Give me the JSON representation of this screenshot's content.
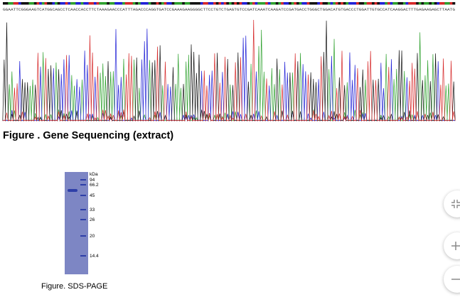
{
  "sequence": "GGAATTCGGGAAGTCATGGCAGCCTCAACCACCTTCTAAAGAACCCATTTAGACCCAGGTGATCCGAAAGAAGGGGCTTCCTGTCTGAGTGTCCGATCAAATCAAGATCCGATGACCTGGGCTGGACATGTGACCCTGGATTGTGCCATCAAGGACTTTGAGAAGAGCTTAATG",
  "figures": {
    "sequencing_title": "Figure . Gene Sequencing (extract)",
    "sds_caption": "Figure. SDS-PAGE"
  },
  "gel": {
    "unit": "kDa",
    "markers": [
      "94",
      "66.2",
      "45",
      "33",
      "26",
      "20",
      "14.4"
    ]
  },
  "sidebar": {
    "buttons": [
      {
        "name": "expand-button",
        "icon": "expand-icon"
      },
      {
        "name": "zoom-in-button",
        "icon": "plus-icon"
      },
      {
        "name": "zoom-out-button",
        "icon": "minus-icon"
      }
    ]
  },
  "colors": {
    "A": "#2ca02c",
    "C": "#1f1fd6",
    "G": "#111111",
    "T": "#d62728",
    "gel_bg": "#7d86c4",
    "band": "#2e3fa8"
  }
}
